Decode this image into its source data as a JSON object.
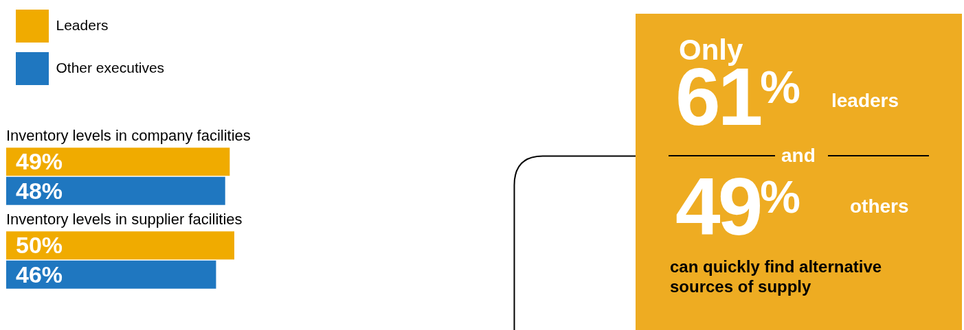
{
  "chart_data": [
    {
      "type": "bar",
      "orientation": "horizontal",
      "categories": [
        "Inventory levels in company facilities",
        "Inventory levels in supplier facilities"
      ],
      "series": [
        {
          "name": "Leaders",
          "color": "#f0ab00",
          "values": [
            49,
            50
          ],
          "value_labels": [
            "49%",
            "50%"
          ]
        },
        {
          "name": "Other executives",
          "color": "#1f77c0",
          "values": [
            48,
            46
          ],
          "value_labels": [
            "48%",
            "46%"
          ]
        }
      ],
      "legend": "top left"
    },
    {
      "type": "other",
      "annotations": [
        "Only",
        "61%",
        "leaders",
        "and",
        "49%",
        "others",
        "can quickly find alternative sources of supply"
      ]
    }
  ]
}
